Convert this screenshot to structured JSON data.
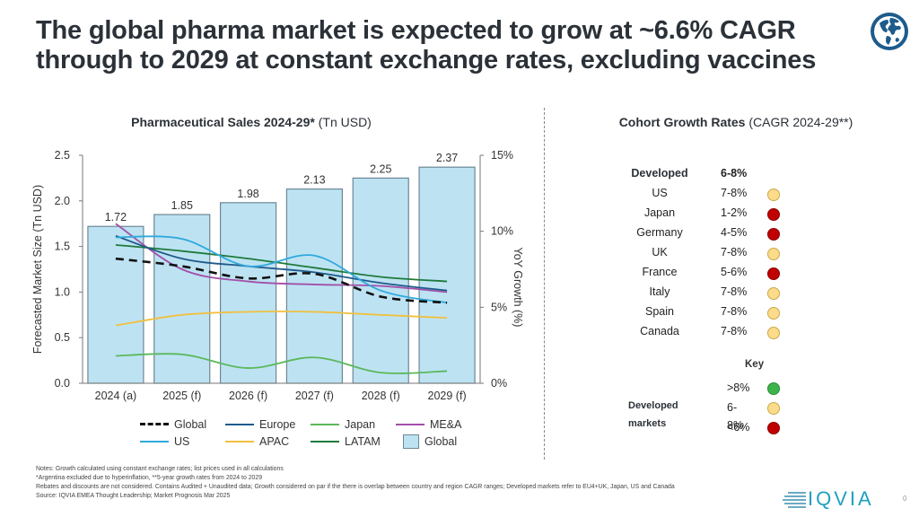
{
  "header": {
    "title_line1": "The global pharma market is expected to grow at ~6.6% CAGR",
    "title_line2": "through to 2029 at constant exchange rates, excluding vaccines",
    "icon": "globe-icon"
  },
  "chart_data": {
    "type": "bar",
    "title_bold": "Pharmaceutical Sales 2024-29*",
    "title_rest": " (Tn USD)",
    "categories": [
      "2024 (a)",
      "2025 (f)",
      "2026 (f)",
      "2027 (f)",
      "2028 (f)",
      "2029 (f)"
    ],
    "bars": {
      "name": "Global",
      "values": [
        1.72,
        1.85,
        1.98,
        2.13,
        2.25,
        2.37
      ],
      "color": "#bde3f3",
      "edge": "#6d8794"
    },
    "ylabel": "Forecasted Market Size  (Tn USD)",
    "ylim": [
      0,
      2.5
    ],
    "yticks": [
      "0.0",
      "0.5",
      "1.0",
      "1.5",
      "2.0",
      "2.5"
    ],
    "y2label": "YoY Growth (%)",
    "y2lim": [
      0,
      15
    ],
    "y2ticks": [
      "0%",
      "5%",
      "10%",
      "15%"
    ],
    "lines": [
      {
        "name": "Global",
        "color": "#111111",
        "dashed": true,
        "values": [
          8.2,
          7.7,
          6.9,
          7.2,
          5.7,
          5.3
        ]
      },
      {
        "name": "Europe",
        "color": "#1f5a8a",
        "dashed": false,
        "values": [
          9.7,
          8.2,
          7.7,
          7.3,
          6.6,
          6.1
        ]
      },
      {
        "name": "Japan",
        "color": "#5cb85c",
        "dashed": false,
        "values": [
          1.8,
          1.9,
          1.0,
          1.7,
          0.7,
          0.8
        ]
      },
      {
        "name": "ME&A",
        "color": "#a250a8",
        "dashed": false,
        "values": [
          10.5,
          7.5,
          6.7,
          6.5,
          6.4,
          6.0
        ]
      },
      {
        "name": "US",
        "color": "#2fa9dc",
        "dashed": false,
        "values": [
          9.6,
          9.5,
          7.7,
          8.4,
          6.1,
          5.3
        ]
      },
      {
        "name": "APAC",
        "color": "#f0c040",
        "dashed": false,
        "values": [
          3.8,
          4.5,
          4.7,
          4.7,
          4.5,
          4.3
        ]
      },
      {
        "name": "LATAM",
        "color": "#1e7a3a",
        "dashed": false,
        "values": [
          9.1,
          8.7,
          8.2,
          7.6,
          7.0,
          6.7
        ]
      }
    ],
    "legend": [
      [
        "Global",
        "Europe",
        "Japan",
        "ME&A"
      ],
      [
        "US",
        "APAC",
        "LATAM",
        "Global"
      ]
    ],
    "legend_placement": "bottom"
  },
  "cohort": {
    "title_bold": "Cohort Growth Rates",
    "title_rest": " (CAGR 2024-29**)",
    "group": {
      "name": "Developed",
      "value": "6-8%"
    },
    "rows": [
      {
        "name": "US",
        "value": "7-8%",
        "status": "amber"
      },
      {
        "name": "Japan",
        "value": "1-2%",
        "status": "red"
      },
      {
        "name": "Germany",
        "value": "4-5%",
        "status": "red"
      },
      {
        "name": "UK",
        "value": "7-8%",
        "status": "amber"
      },
      {
        "name": "France",
        "value": "5-6%",
        "status": "red"
      },
      {
        "name": "Italy",
        "value": "7-8%",
        "status": "amber"
      },
      {
        "name": "Spain",
        "value": "7-8%",
        "status": "amber"
      },
      {
        "name": "Canada",
        "value": "7-8%",
        "status": "amber"
      }
    ],
    "key": {
      "title": "Key",
      "row_label": "Developed markets",
      "items": [
        {
          "label": ">8%",
          "status": "green"
        },
        {
          "label": "6-8%",
          "status": "amber"
        },
        {
          "label": "<6%",
          "status": "red"
        }
      ]
    },
    "colors": {
      "green": "#3cb44b",
      "amber": "#fcdc8a",
      "red": "#c00000"
    }
  },
  "notes": [
    "Notes: Growth calculated using constant exchange rates; list prices used in all calculations",
    "*Argentina excluded due to hyperinflation, **5-year growth rates from 2024 to 2029",
    "Rebates and discounts are not considered. Contains Audited + Unaudited data; Growth considered on par if the there is overlap between country and region CAGR ranges; Developed markets refer to EU4+UK, Japan, US and Canada",
    "Source: IQVIA EMEA Thought Leadership; Market Prognosis Mar 2025"
  ],
  "footer": {
    "logo": "IQVIA",
    "page_number": "0"
  }
}
